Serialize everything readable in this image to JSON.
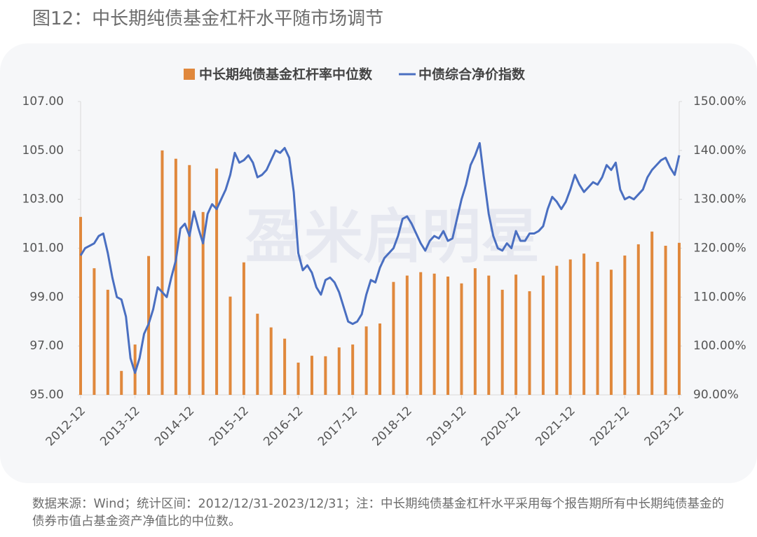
{
  "chart_data": {
    "type": "bar-line",
    "title": "图12：中长期纯债基金杠杆水平随市场调节",
    "watermark": "盈米启明星",
    "note": "数据来源：Wind；统计区间：2012/12/31-2023/12/31；注：中长期纯债基金杠杆水平采用每个报告期所有中长期纯债基金的债券市值占基金资产净值比的中位数。",
    "xticks": [
      "2012-12",
      "2013-12",
      "2014-12",
      "2015-12",
      "2016-12",
      "2017-12",
      "2018-12",
      "2019-12",
      "2020-12",
      "2021-12",
      "2022-12",
      "2023-12"
    ],
    "ylim": [
      95,
      107
    ],
    "yticks": [
      {
        "value": 95,
        "label": "95.00"
      },
      {
        "value": 97,
        "label": "97.00"
      },
      {
        "value": 99,
        "label": "99.00"
      },
      {
        "value": 101,
        "label": "101.00"
      },
      {
        "value": 103,
        "label": "103.00"
      },
      {
        "value": 105,
        "label": "105.00"
      },
      {
        "value": 107,
        "label": "107.00"
      }
    ],
    "y2lim": [
      90,
      150
    ],
    "y2ticks": [
      {
        "value": 90,
        "label": "90.00%"
      },
      {
        "value": 100,
        "label": "100.00%"
      },
      {
        "value": 110,
        "label": "110.00%"
      },
      {
        "value": 120,
        "label": "120.00%"
      },
      {
        "value": 130,
        "label": "130.00%"
      },
      {
        "value": 140,
        "label": "140.00%"
      },
      {
        "value": 150,
        "label": "150.00%"
      }
    ],
    "grid": false,
    "legend": "top",
    "series": [
      {
        "name": "中长期纯债基金杠杆率中位数",
        "kind": "bar",
        "axis": "y2",
        "color": "#e0883c",
        "x": [
          "2012-12",
          "2013-03",
          "2013-06",
          "2013-09",
          "2013-12",
          "2014-03",
          "2014-06",
          "2014-09",
          "2014-12",
          "2015-03",
          "2015-06",
          "2015-09",
          "2015-12",
          "2016-03",
          "2016-06",
          "2016-09",
          "2016-12",
          "2017-03",
          "2017-06",
          "2017-09",
          "2017-12",
          "2018-03",
          "2018-06",
          "2018-09",
          "2018-12",
          "2019-03",
          "2019-06",
          "2019-09",
          "2019-12",
          "2020-03",
          "2020-06",
          "2020-09",
          "2020-12",
          "2021-03",
          "2021-06",
          "2021-09",
          "2021-12",
          "2022-03",
          "2022-06",
          "2022-09",
          "2022-12",
          "2023-03",
          "2023-06",
          "2023-09",
          "2023-12"
        ],
        "values": [
          126.4,
          115.9,
          111.5,
          94.9,
          100.3,
          118.4,
          140.0,
          138.3,
          137.0,
          127.4,
          136.3,
          110.1,
          117.1,
          106.6,
          103.8,
          101.5,
          96.6,
          98.0,
          97.9,
          99.7,
          100.3,
          104.0,
          104.6,
          113.1,
          114.4,
          115.1,
          114.8,
          114.2,
          112.8,
          115.9,
          114.4,
          111.5,
          114.6,
          111.2,
          114.4,
          116.4,
          117.7,
          118.9,
          117.2,
          115.6,
          118.5,
          120.8,
          123.4,
          120.5,
          121.1
        ]
      },
      {
        "name": "中债综合净价指数",
        "kind": "line",
        "axis": "y",
        "color": "#4a6fc1",
        "x": [
          "2012-12",
          "2013-01",
          "2013-02",
          "2013-03",
          "2013-04",
          "2013-05",
          "2013-06",
          "2013-07",
          "2013-08",
          "2013-09",
          "2013-10",
          "2013-11",
          "2013-12",
          "2014-01",
          "2014-02",
          "2014-03",
          "2014-04",
          "2014-05",
          "2014-06",
          "2014-07",
          "2014-08",
          "2014-09",
          "2014-10",
          "2014-11",
          "2014-12",
          "2015-01",
          "2015-02",
          "2015-03",
          "2015-04",
          "2015-05",
          "2015-06",
          "2015-07",
          "2015-08",
          "2015-09",
          "2015-10",
          "2015-11",
          "2015-12",
          "2016-01",
          "2016-02",
          "2016-03",
          "2016-04",
          "2016-05",
          "2016-06",
          "2016-07",
          "2016-08",
          "2016-09",
          "2016-10",
          "2016-11",
          "2016-12",
          "2017-01",
          "2017-02",
          "2017-03",
          "2017-04",
          "2017-05",
          "2017-06",
          "2017-07",
          "2017-08",
          "2017-09",
          "2017-10",
          "2017-11",
          "2017-12",
          "2018-01",
          "2018-02",
          "2018-03",
          "2018-04",
          "2018-05",
          "2018-06",
          "2018-07",
          "2018-08",
          "2018-09",
          "2018-10",
          "2018-11",
          "2018-12",
          "2019-01",
          "2019-02",
          "2019-03",
          "2019-04",
          "2019-05",
          "2019-06",
          "2019-07",
          "2019-08",
          "2019-09",
          "2019-10",
          "2019-11",
          "2019-12",
          "2020-01",
          "2020-02",
          "2020-03",
          "2020-04",
          "2020-05",
          "2020-06",
          "2020-07",
          "2020-08",
          "2020-09",
          "2020-10",
          "2020-11",
          "2020-12",
          "2021-01",
          "2021-02",
          "2021-03",
          "2021-04",
          "2021-05",
          "2021-06",
          "2021-07",
          "2021-08",
          "2021-09",
          "2021-10",
          "2021-11",
          "2021-12",
          "2022-01",
          "2022-02",
          "2022-03",
          "2022-04",
          "2022-05",
          "2022-06",
          "2022-07",
          "2022-08",
          "2022-09",
          "2022-10",
          "2022-11",
          "2022-12",
          "2023-01",
          "2023-02",
          "2023-03",
          "2023-04",
          "2023-05",
          "2023-06",
          "2023-07",
          "2023-08",
          "2023-09",
          "2023-10",
          "2023-11",
          "2023-12"
        ],
        "values": [
          100.7,
          101.0,
          101.1,
          101.2,
          101.5,
          101.6,
          100.8,
          99.8,
          99.0,
          98.9,
          98.2,
          96.5,
          95.9,
          96.5,
          97.5,
          97.9,
          98.5,
          99.4,
          99.2,
          99.0,
          99.8,
          100.5,
          101.8,
          102.0,
          101.5,
          102.5,
          101.8,
          101.2,
          102.4,
          102.8,
          102.6,
          103.0,
          103.4,
          104.0,
          104.9,
          104.5,
          104.6,
          104.8,
          104.5,
          103.9,
          104.0,
          104.2,
          104.6,
          105.0,
          104.9,
          105.1,
          104.7,
          103.3,
          100.8,
          100.1,
          100.3,
          100.0,
          99.4,
          99.1,
          99.7,
          99.8,
          99.6,
          99.2,
          98.6,
          98.0,
          97.9,
          98.0,
          98.3,
          99.1,
          99.7,
          99.6,
          100.2,
          100.6,
          100.8,
          101.0,
          101.5,
          102.2,
          102.3,
          102.0,
          101.6,
          101.2,
          100.9,
          101.3,
          101.5,
          101.4,
          101.7,
          101.3,
          101.4,
          102.2,
          103.0,
          103.6,
          104.4,
          104.8,
          105.3,
          103.8,
          102.4,
          101.5,
          101.0,
          100.9,
          101.2,
          101.0,
          101.7,
          101.3,
          101.3,
          101.6,
          101.6,
          101.7,
          101.9,
          102.6,
          103.1,
          102.9,
          102.6,
          102.9,
          103.4,
          104.0,
          103.6,
          103.3,
          103.5,
          103.7,
          103.6,
          103.9,
          104.4,
          104.2,
          104.5,
          103.4,
          103.0,
          103.1,
          103.0,
          103.2,
          103.4,
          103.9,
          104.2,
          104.4,
          104.6,
          104.7,
          104.3,
          104.0,
          104.8
        ]
      }
    ]
  }
}
